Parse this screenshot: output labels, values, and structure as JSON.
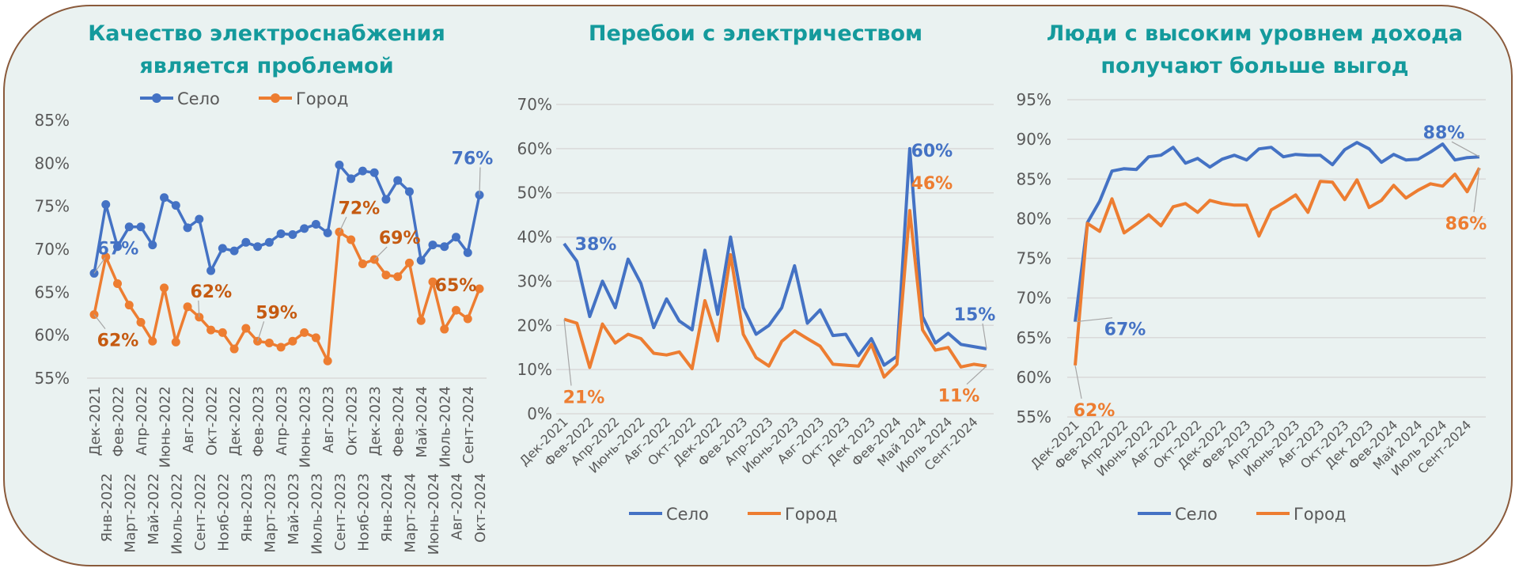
{
  "colors": {
    "selo": "#4472c4",
    "gorod": "#ed7d31",
    "gorod_label_chart1": "#c55a11",
    "title": "#149a9c"
  },
  "chart_data": [
    {
      "type": "line",
      "title": "Качество электроснабжения является проблемой",
      "title_lines": [
        "Качество электроснабжения",
        "является проблемой"
      ],
      "ylim": [
        55,
        85
      ],
      "ytick_step": 5,
      "yticks": [
        "55%",
        "60%",
        "65%",
        "70%",
        "75%",
        "80%",
        "85%"
      ],
      "grid": false,
      "markers": true,
      "legend": "bottom",
      "categories": [
        "Дек-2021",
        "Янв-2022",
        "Фев-2022",
        "Март-2022",
        "Апр-2022",
        "Май-2022",
        "Июнь-2022",
        "Июль-2022",
        "Авг-2022",
        "Сент-2022",
        "Окт-2022",
        "Нояб-2022",
        "Дек-2022",
        "Янв-2023",
        "Фев-2023",
        "Март-2023",
        "Апр-2023",
        "Май-2023",
        "Июнь-2023",
        "Июль-2023",
        "Авг-2023",
        "Сент-2023",
        "Окт-2023",
        "Нояб-2023",
        "Дек-2023",
        "Янв-2024",
        "Фев-2024",
        "Март-2024",
        "Май-2024",
        "Июнь-2024",
        "Июль-2024",
        "Авг-2024",
        "Сент-2024",
        "Окт-2024"
      ],
      "series": [
        {
          "name": "Село",
          "values": [
            67.2,
            75.2,
            70.3,
            72.6,
            72.6,
            70.5,
            76.0,
            75.1,
            72.5,
            73.5,
            67.5,
            70.1,
            69.8,
            70.8,
            70.3,
            70.8,
            71.8,
            71.7,
            72.4,
            72.9,
            71.9,
            79.8,
            78.2,
            79.1,
            78.9,
            75.8,
            78.0,
            76.7,
            68.7,
            70.5,
            70.3,
            71.4,
            69.6,
            76.3
          ],
          "data_labels": [
            {
              "index": 0,
              "text": "67%"
            },
            {
              "index": 33,
              "text": "76%"
            }
          ]
        },
        {
          "name": "Город",
          "values": [
            62.4,
            69.1,
            66.0,
            63.5,
            61.5,
            59.3,
            65.5,
            59.2,
            63.3,
            62.1,
            60.6,
            60.3,
            58.4,
            60.8,
            59.3,
            59.1,
            58.6,
            59.3,
            60.3,
            59.7,
            57.0,
            72.0,
            71.1,
            68.3,
            68.8,
            67.0,
            66.8,
            68.4,
            61.7,
            66.2,
            60.7,
            62.9,
            61.9,
            65.4
          ],
          "data_labels": [
            {
              "index": 0,
              "text": "62%"
            },
            {
              "index": 9,
              "text": "62%"
            },
            {
              "index": 14,
              "text": "59%"
            },
            {
              "index": 21,
              "text": "72%"
            },
            {
              "index": 24,
              "text": "69%"
            },
            {
              "index": 33,
              "text": "65%"
            }
          ]
        }
      ]
    },
    {
      "type": "line",
      "title": "Перебои с электричеством",
      "title_lines": [
        "Перебои с электричеством"
      ],
      "ylim": [
        0,
        70
      ],
      "ytick_step": 10,
      "yticks": [
        "0%",
        "10%",
        "20%",
        "30%",
        "40%",
        "50%",
        "60%",
        "70%"
      ],
      "grid": true,
      "markers": false,
      "legend": "bottom",
      "categories": [
        "Дек-2021",
        "Янв-2022",
        "Фев-2022",
        "Март-2022",
        "Апр-2022",
        "Май-2022",
        "Июнь-2022",
        "Июль-2022",
        "Авг-2022",
        "Сент-2022",
        "Окт-2022",
        "Нояб-2022",
        "Дек-2022",
        "Янв-2023",
        "Фев-2023",
        "Март-2023",
        "Апр-2023",
        "Май-2023",
        "Июнь-2023",
        "Июль-2023",
        "Авг-2023",
        "Сент-2023",
        "Окт-2023",
        "Нояб-2023",
        "Дек 2023",
        "Янв-2024",
        "Фев-2024",
        "Март-2024",
        "Май 2024",
        "Июнь-2024",
        "Июль 2024",
        "Авг-2024",
        "Сент-2024",
        "Окт-2024"
      ],
      "visible_category_labels": [
        "Дек-2021",
        "Фев-2022",
        "Апр-2022",
        "Июнь-2022",
        "Авг-2022",
        "Окт-2022",
        "Дек-2022",
        "Фев-2023",
        "Апр-2023",
        "Июнь-2023",
        "Авг-2023",
        "Окт-2023",
        "Дек 2023",
        "Фев-2024",
        "Май 2024",
        "Июль 2024",
        "Сент-2024"
      ],
      "series": [
        {
          "name": "Село",
          "values": [
            38.5,
            34.5,
            22.0,
            30.0,
            24.0,
            35.0,
            29.5,
            19.5,
            26.0,
            21.0,
            19.0,
            37.0,
            22.5,
            40.0,
            24.0,
            18.0,
            20.0,
            24.0,
            33.5,
            20.5,
            23.5,
            17.7,
            18.0,
            13.2,
            17.0,
            11.0,
            13.0,
            60.0,
            22.0,
            16.0,
            18.2,
            15.7,
            15.2,
            14.7
          ],
          "data_labels": [
            {
              "index": 0,
              "text": "38%"
            },
            {
              "index": 27,
              "text": "60%"
            },
            {
              "index": 33,
              "text": "15%"
            }
          ]
        },
        {
          "name": "Город",
          "values": [
            21.4,
            20.5,
            10.5,
            20.3,
            16.0,
            18.0,
            17.0,
            13.7,
            13.3,
            14.0,
            10.2,
            25.6,
            16.5,
            36.0,
            18.0,
            12.7,
            10.8,
            16.4,
            18.8,
            17.0,
            15.3,
            11.2,
            11.0,
            10.8,
            15.7,
            8.3,
            11.2,
            46.0,
            19.0,
            14.4,
            15.0,
            10.6,
            11.2,
            10.8
          ],
          "data_labels": [
            {
              "index": 0,
              "text": "21%"
            },
            {
              "index": 27,
              "text": "46%"
            },
            {
              "index": 33,
              "text": "11%"
            }
          ]
        }
      ]
    },
    {
      "type": "line",
      "title": "Люди с высоким уровнем дохода получают больше выгод",
      "title_lines": [
        "Люди с высоким уровнем дохода",
        "получают больше выгод"
      ],
      "ylim": [
        55,
        95
      ],
      "ytick_step": 5,
      "yticks": [
        "55%",
        "60%",
        "65%",
        "70%",
        "75%",
        "80%",
        "85%",
        "90%",
        "95%"
      ],
      "grid": true,
      "markers": false,
      "legend": "bottom",
      "categories": [
        "Дек-2021",
        "Янв-2022",
        "Фев-2022",
        "Март-2022",
        "Апр-2022",
        "Май-2022",
        "Июнь-2022",
        "Июль-2022",
        "Авг-2022",
        "Сент-2022",
        "Окт-2022",
        "Нояб-2022",
        "Дек-2022",
        "Янв-2023",
        "Фев-2023",
        "Март-2023",
        "Апр-2023",
        "Май-2023",
        "Июнь-2023",
        "Июль-2023",
        "Авг-2023",
        "Сент-2023",
        "Окт-2023",
        "Нояб-2023",
        "Дек 2023",
        "Янв-2024",
        "Фев-2024",
        "Март-2024",
        "Май 2024",
        "Июнь-2024",
        "Июль 2024",
        "Авг-2024",
        "Сент-2024",
        "Окт-2024"
      ],
      "visible_category_labels": [
        "Дек-2021",
        "Фев-2022",
        "Апр-2022",
        "Июнь-2022",
        "Авг-2022",
        "Окт-2022",
        "Дек-2022",
        "Фев-2023",
        "Апр-2023",
        "Июнь-2023",
        "Авг-2023",
        "Окт-2023",
        "Дек 2023",
        "Фев-2024",
        "Май 2024",
        "Июль 2024",
        "Сент-2024"
      ],
      "series": [
        {
          "name": "Село",
          "values": [
            67.0,
            79.5,
            82.2,
            86.0,
            86.3,
            86.2,
            87.8,
            88.0,
            89.0,
            87.0,
            87.6,
            86.5,
            87.5,
            88.0,
            87.4,
            88.8,
            89.0,
            87.8,
            88.1,
            88.0,
            88.0,
            86.8,
            88.7,
            89.6,
            88.8,
            87.1,
            88.1,
            87.4,
            87.5,
            88.4,
            89.4,
            87.4,
            87.7,
            87.8
          ],
          "data_labels": [
            {
              "index": 0,
              "text": "67%"
            },
            {
              "index": 33,
              "text": "88%"
            }
          ]
        },
        {
          "name": "Город",
          "values": [
            61.5,
            79.4,
            78.4,
            82.5,
            78.2,
            79.3,
            80.5,
            79.1,
            81.5,
            81.9,
            80.8,
            82.3,
            81.9,
            81.7,
            81.7,
            77.8,
            81.1,
            82.0,
            83.0,
            80.8,
            84.7,
            84.6,
            82.4,
            84.9,
            81.4,
            82.3,
            84.2,
            82.6,
            83.6,
            84.4,
            84.1,
            85.6,
            83.4,
            86.4
          ],
          "data_labels": [
            {
              "index": 0,
              "text": "62%"
            },
            {
              "index": 33,
              "text": "86%"
            }
          ]
        }
      ]
    }
  ]
}
